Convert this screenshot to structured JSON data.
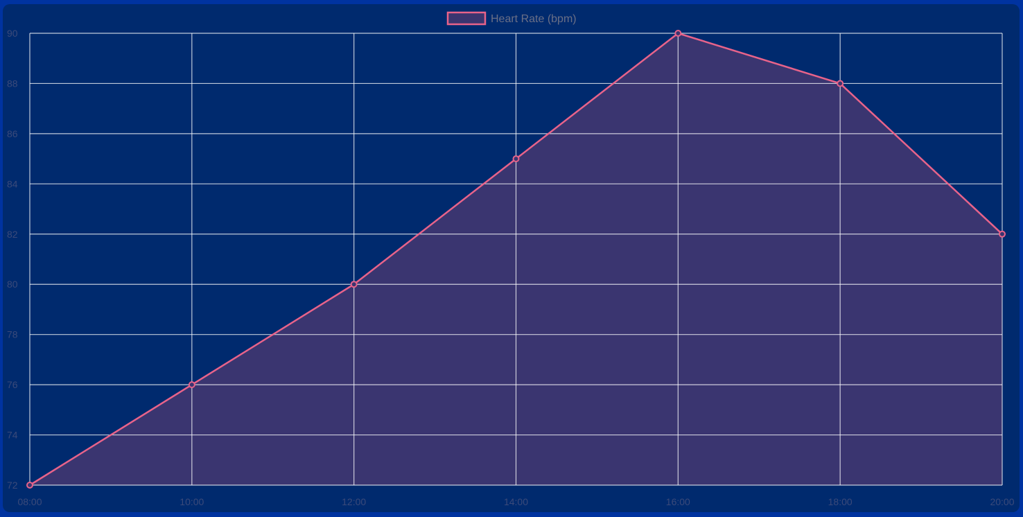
{
  "chart_data": {
    "type": "area",
    "x": [
      "08:00",
      "10:00",
      "12:00",
      "14:00",
      "16:00",
      "18:00",
      "20:00"
    ],
    "series": [
      {
        "name": "Heart Rate (bpm)",
        "values": [
          72,
          76,
          80,
          85,
          90,
          88,
          82
        ]
      }
    ],
    "title": "",
    "xlabel": "",
    "ylabel": "",
    "ylim": [
      72,
      90
    ],
    "yticks": [
      72,
      74,
      76,
      78,
      80,
      82,
      84,
      86,
      88,
      90
    ],
    "grid": true,
    "legend": "top-center"
  },
  "colors": {
    "background": "#0033a0",
    "plot_background": "#002a6e",
    "line": "#e8638a",
    "fill": "#3a3570",
    "grid": "#ffffff"
  }
}
